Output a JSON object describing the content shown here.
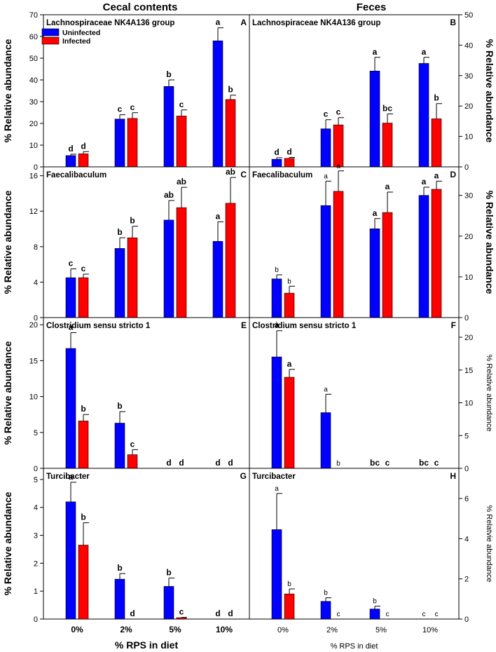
{
  "column_titles": {
    "left": "Cecal contents",
    "right": "Feces"
  },
  "legend": {
    "uninfected": "Uninfected",
    "infected": "Infected"
  },
  "colors": {
    "uninfected": "#0000ff",
    "infected": "#ff0000"
  },
  "chart_data": [
    {
      "id": "A",
      "type": "bar",
      "col": 0,
      "row": 0,
      "title": "Lachnospiraceae NK4A136 group",
      "ylabel": "% Relative abundance",
      "ylim": [
        0,
        70
      ],
      "yticks": [
        0,
        10,
        20,
        30,
        40,
        50,
        60,
        70
      ],
      "ytick_labels": [
        "0",
        "10",
        "20",
        "30",
        "40",
        "50",
        "60",
        "70"
      ],
      "categories": [
        "0%",
        "2%",
        "5%",
        "10%"
      ],
      "xlabel": "",
      "series": [
        {
          "name": "Uninfected",
          "values": [
            5.2,
            22,
            37,
            58
          ],
          "errors": [
            0.6,
            2,
            3,
            6
          ],
          "labels": [
            "d",
            "c",
            "b",
            "a"
          ]
        },
        {
          "name": "Infected",
          "values": [
            6,
            22.3,
            23.4,
            31
          ],
          "errors": [
            1,
            2.6,
            2.8,
            2
          ],
          "labels": [
            "d",
            "c",
            "c",
            "b"
          ]
        }
      ],
      "label_style": [
        "bold",
        "bold",
        "bold",
        "bold",
        "bold",
        "bold",
        "bold",
        "bold"
      ]
    },
    {
      "id": "B",
      "type": "bar",
      "col": 1,
      "row": 0,
      "title": "Lachnospiraceae NK4A136 group",
      "ylabel": "% Relative abundance",
      "ylim": [
        0,
        50
      ],
      "yticks": [
        0,
        10,
        20,
        30,
        40,
        50
      ],
      "ytick_labels": [
        "0",
        "10",
        "20",
        "30",
        "40",
        "50"
      ],
      "categories": [
        "0%",
        "2%",
        "5%",
        "10%"
      ],
      "xlabel": "",
      "series": [
        {
          "name": "Uninfected",
          "values": [
            2.5,
            12.5,
            31.5,
            34
          ],
          "errors": [
            0.5,
            3,
            4.5,
            2
          ],
          "labels": [
            "d",
            "c",
            "a",
            "a"
          ]
        },
        {
          "name": "Infected",
          "values": [
            2.8,
            13.8,
            14.4,
            15.8
          ],
          "errors": [
            0.3,
            2.4,
            3,
            5
          ],
          "labels": [
            "d",
            "c",
            "bc",
            "b"
          ]
        }
      ]
    },
    {
      "id": "C",
      "type": "bar",
      "col": 0,
      "row": 1,
      "title": "Faecalibaculum",
      "ylabel": "% Relative abundance",
      "ylim": [
        0,
        17
      ],
      "yticks": [
        0,
        4,
        8,
        12,
        16
      ],
      "ytick_labels": [
        "0",
        "4",
        "8",
        "12",
        "16"
      ],
      "categories": [
        "0%",
        "2%",
        "5%",
        "10%"
      ],
      "xlabel": "",
      "series": [
        {
          "name": "Uninfected",
          "values": [
            4.5,
            7.8,
            11,
            8.6
          ],
          "errors": [
            1,
            1.2,
            2.2,
            2.2
          ],
          "labels": [
            "c",
            "b",
            "ab",
            "a"
          ]
        },
        {
          "name": "Infected",
          "values": [
            4.5,
            9,
            12.4,
            12.9
          ],
          "errors": [
            0.4,
            1.3,
            2.3,
            2.9
          ],
          "labels": [
            "c",
            "b",
            "ab",
            "ab"
          ]
        }
      ]
    },
    {
      "id": "D",
      "type": "bar",
      "col": 1,
      "row": 1,
      "title": "Faecalibaculum",
      "ylabel": "% Relative abundance",
      "ylim": [
        0,
        37
      ],
      "yticks": [
        0,
        10,
        20,
        30
      ],
      "ytick_labels": [
        "0",
        "10",
        "20",
        "30"
      ],
      "categories": [
        "0%",
        "2%",
        "5%",
        "10%"
      ],
      "xlabel": "",
      "series": [
        {
          "name": "Uninfected",
          "values": [
            9.5,
            27.5,
            21.8,
            30
          ],
          "errors": [
            1,
            6,
            2.5,
            2
          ],
          "labels": [
            "b",
            "a",
            "a",
            "a"
          ]
        },
        {
          "name": "Infected",
          "values": [
            6,
            31,
            25.8,
            31.5
          ],
          "errors": [
            1.7,
            5,
            5,
            2
          ],
          "labels": [
            "b",
            "a",
            "a",
            "a"
          ]
        }
      ]
    },
    {
      "id": "E",
      "type": "bar",
      "col": 0,
      "row": 2,
      "title": "Clostridium sensu stricto 1",
      "ylabel": "% Relative abundance",
      "ylim": [
        0,
        21
      ],
      "yticks": [
        0,
        5,
        10,
        15,
        20
      ],
      "ytick_labels": [
        "0",
        "5",
        "10",
        "15",
        "20"
      ],
      "categories": [
        "0%",
        "2%",
        "5%",
        "10%"
      ],
      "xlabel": "",
      "series": [
        {
          "name": "Uninfected",
          "values": [
            16.7,
            6.3,
            0,
            0
          ],
          "errors": [
            2.2,
            1.6,
            0,
            0
          ],
          "labels": [
            "a",
            "b",
            "d",
            "d"
          ]
        },
        {
          "name": "Infected",
          "values": [
            6.6,
            1.9,
            0,
            0
          ],
          "errors": [
            0.9,
            0.7,
            0,
            0
          ],
          "labels": [
            "b",
            "c",
            "d",
            "d"
          ]
        }
      ]
    },
    {
      "id": "F",
      "type": "bar",
      "col": 1,
      "row": 2,
      "title": "Clostridium sensu stricto 1",
      "ylabel": "% Relative abundance",
      "ylim": [
        0,
        23
      ],
      "yticks": [
        0,
        5,
        10,
        15,
        20
      ],
      "ytick_labels": [
        "0",
        "5",
        "10",
        "15",
        "20"
      ],
      "categories": [
        "0%",
        "2%",
        "5%",
        "10%"
      ],
      "xlabel": "",
      "series": [
        {
          "name": "Uninfected",
          "values": [
            17,
            8.5,
            0,
            0
          ],
          "errors": [
            4,
            2.8,
            0,
            0
          ],
          "labels": [
            "a",
            "a",
            "bc",
            "bc"
          ]
        },
        {
          "name": "Infected",
          "values": [
            13.9,
            0,
            0,
            0
          ],
          "errors": [
            1.2,
            0,
            0,
            0
          ],
          "labels": [
            "a",
            "b",
            "c",
            "c"
          ]
        }
      ]
    },
    {
      "id": "G",
      "type": "bar",
      "col": 0,
      "row": 3,
      "title": "Turcibacter",
      "ylabel": "% Relative abundance",
      "ylim": [
        0,
        5.4
      ],
      "yticks": [
        0,
        1,
        2,
        3,
        4,
        5
      ],
      "ytick_labels": [
        "0",
        "1",
        "2",
        "3",
        "4",
        "5"
      ],
      "categories": [
        "0%",
        "2%",
        "5%",
        "10%"
      ],
      "xlabel": "% RPS in diet",
      "series": [
        {
          "name": "Uninfected",
          "values": [
            4.2,
            1.43,
            1.17,
            0
          ],
          "errors": [
            0.7,
            0.2,
            0.3,
            0
          ],
          "labels": [
            "a",
            "b",
            "b",
            "d"
          ]
        },
        {
          "name": "Infected",
          "values": [
            2.65,
            0,
            0.05,
            0
          ],
          "errors": [
            0.8,
            0,
            0.01,
            0
          ],
          "labels": [
            "b",
            "d",
            "c",
            "d"
          ]
        }
      ]
    },
    {
      "id": "H",
      "type": "bar",
      "col": 1,
      "row": 3,
      "title": "Turcibacter",
      "ylabel": "% Relatvie abundance",
      "ylim": [
        0,
        7.5
      ],
      "yticks": [
        0,
        2,
        4,
        6
      ],
      "ytick_labels": [
        "0",
        "2",
        "4",
        "6"
      ],
      "categories": [
        "0%",
        "2%",
        "5%",
        "10%"
      ],
      "xlabel": "% RPS in diet",
      "series": [
        {
          "name": "Uninfected",
          "values": [
            4.45,
            0.88,
            0.5,
            0
          ],
          "errors": [
            1.8,
            0.18,
            0.14,
            0
          ],
          "labels": [
            "a",
            "b",
            "b",
            "c"
          ]
        },
        {
          "name": "Infected",
          "values": [
            1.25,
            0,
            0,
            0
          ],
          "errors": [
            0.25,
            0,
            0,
            0
          ],
          "labels": [
            "b",
            "c",
            "c",
            "c"
          ]
        }
      ]
    }
  ]
}
